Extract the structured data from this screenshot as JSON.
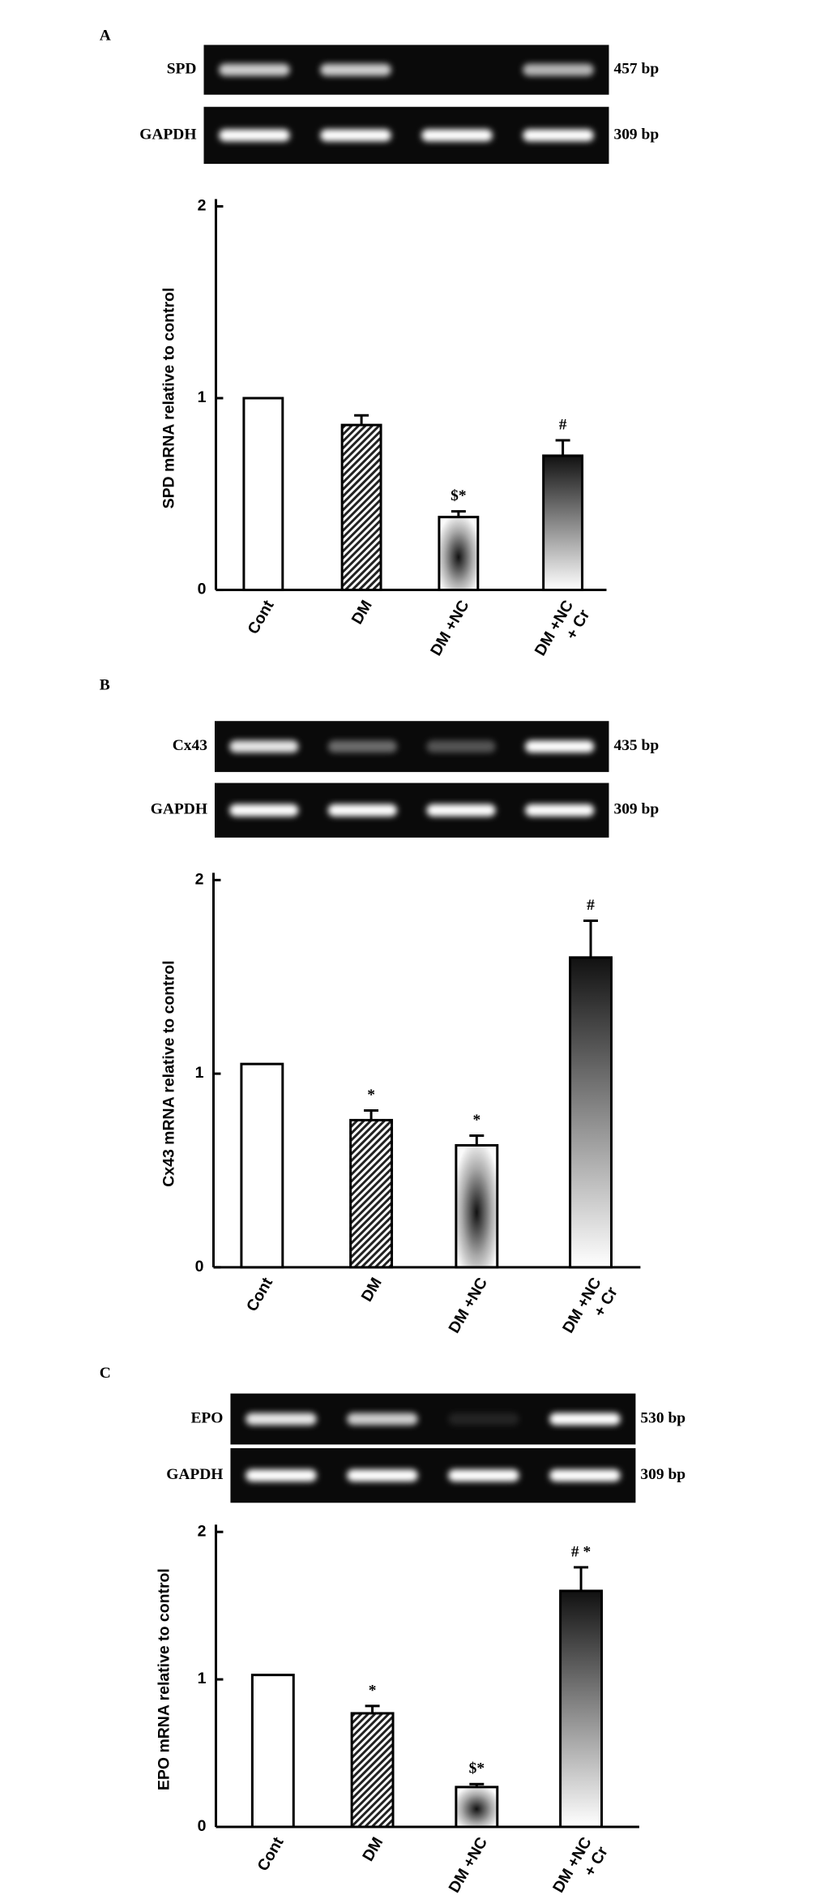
{
  "chart_data": [
    {
      "panel": "A",
      "type": "bar",
      "gel": [
        {
          "label": "SPD",
          "size": "457 bp"
        },
        {
          "label": "GAPDH",
          "size": "309 bp"
        }
      ],
      "y_label": "SPD  mRNA relative to control",
      "categories": [
        "Cont",
        "DM",
        "DM +NC",
        "DM +NC\n+ Cr"
      ],
      "values": [
        1,
        0.86,
        0.38,
        0.7
      ],
      "errors": [
        null,
        0.05,
        0.03,
        0.08
      ],
      "annotations": [
        null,
        null,
        "$*",
        "#"
      ],
      "fill_styles": [
        "white",
        "hatch",
        "bowtie",
        "fade"
      ],
      "ylim": [
        0,
        2
      ],
      "yticks": [
        0,
        1,
        2
      ]
    },
    {
      "panel": "B",
      "type": "bar",
      "gel": [
        {
          "label": "Cx43",
          "size": "435 bp"
        },
        {
          "label": "GAPDH",
          "size": "309 bp"
        }
      ],
      "y_label": "Cx43  mRNA relative  to control",
      "categories": [
        "Cont",
        "DM",
        "DM +NC",
        "DM +NC\n+ Cr"
      ],
      "values": [
        1.05,
        0.76,
        0.63,
        1.6
      ],
      "errors": [
        null,
        0.05,
        0.05,
        0.19
      ],
      "annotations": [
        null,
        "*",
        "*",
        "#"
      ],
      "fill_styles": [
        "white",
        "hatch",
        "bowtie",
        "fade"
      ],
      "ylim": [
        0,
        2
      ],
      "yticks": [
        0,
        1,
        2
      ]
    },
    {
      "panel": "C",
      "type": "bar",
      "gel": [
        {
          "label": "EPO",
          "size": "530 bp"
        },
        {
          "label": "GAPDH",
          "size": "309 bp"
        }
      ],
      "y_label": "EPO  mRNA relative to control",
      "categories": [
        "Cont",
        "DM",
        "DM +NC",
        "DM +NC\n+ Cr"
      ],
      "values": [
        1.03,
        0.77,
        0.27,
        1.6
      ],
      "errors": [
        null,
        0.05,
        0.02,
        0.16
      ],
      "annotations": [
        null,
        "*",
        "$*",
        "# *"
      ],
      "fill_styles": [
        "white",
        "hatch",
        "bowtie",
        "fade"
      ],
      "ylim": [
        0,
        2
      ],
      "yticks": [
        0,
        1,
        2
      ]
    }
  ]
}
